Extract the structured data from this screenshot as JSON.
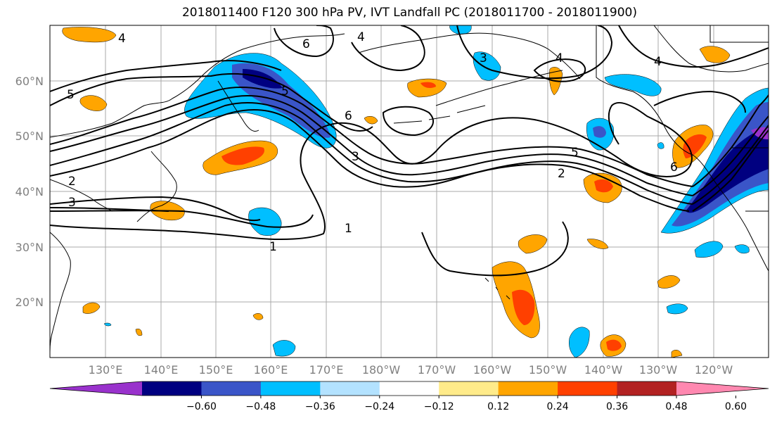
{
  "title": "2018011400 F120 300 hPa PV, IVT Landfall PC (2018011700 - 2018011900)",
  "lat_labels": [
    "60°N",
    "50°N",
    "40°N",
    "30°N",
    "20°N"
  ],
  "lon_labels": [
    "130°E",
    "140°E",
    "150°E",
    "160°E",
    "170°E",
    "180°W",
    "170°W",
    "160°W",
    "150°W",
    "140°W",
    "130°W",
    "120°W"
  ],
  "contour_labels": [
    "1",
    "1",
    "2",
    "2",
    "3",
    "3",
    "3",
    "4",
    "4",
    "4",
    "4",
    "5",
    "5",
    "5",
    "6",
    "6",
    "6"
  ],
  "colorbar": {
    "ticks": [
      "−0.60",
      "−0.48",
      "−0.36",
      "−0.24",
      "−0.12",
      "0.12",
      "0.24",
      "0.36",
      "0.48",
      "0.60"
    ],
    "colors": [
      "#9932cc",
      "#000080",
      "#3a55c8",
      "#00bfff",
      "#b3e2ff",
      "#ffffff",
      "#ffeb8a",
      "#ffa500",
      "#ff4000",
      "#b22222",
      "#ff88b0"
    ]
  },
  "palette": {
    "map_bg": "#ffffff",
    "grid": "#a9a9a9",
    "coast": "#000000"
  }
}
